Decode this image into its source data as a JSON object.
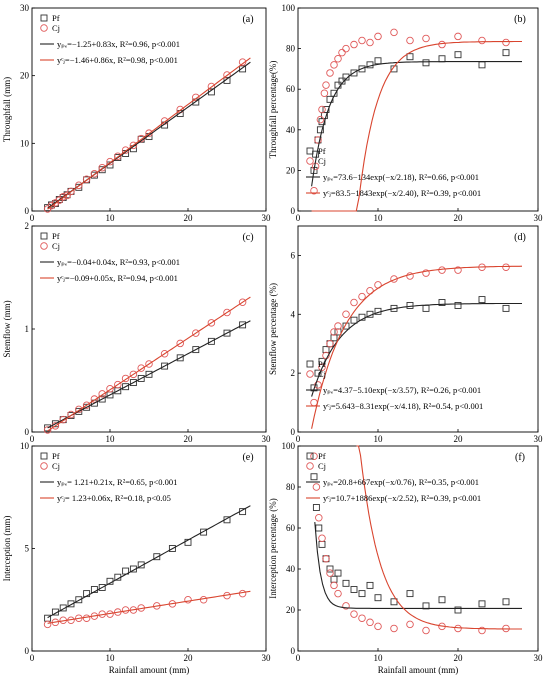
{
  "colors": {
    "pf": "#333333",
    "cj": "#e05a5a",
    "pf_line": "#222222",
    "cj_line": "#d9452f"
  },
  "chart_data": [
    {
      "type": "scatter",
      "panel_label": "(a)",
      "ylabel": "Throughfall (mm)",
      "xlabel": "",
      "xlim": [
        0,
        30
      ],
      "xticks": [
        0,
        10,
        20,
        30
      ],
      "ylim": [
        0,
        30
      ],
      "yticks": [
        0,
        10,
        20,
        30
      ],
      "legend": [
        "Pf",
        "Cj"
      ],
      "legend_position": "top-left",
      "fits": [
        {
          "series": "Pf",
          "equation": "yₚₑ=−1.25+0.83x, R²=0.96, p<0.001",
          "model": "linear",
          "a": -1.25,
          "b": 0.83,
          "x_range": [
            2,
            28
          ]
        },
        {
          "series": "Cj",
          "equation": "yᶜⱼ=−1.46+0.86x, R²=0.98, p<0.001",
          "model": "linear",
          "a": -1.46,
          "b": 0.86,
          "x_range": [
            2,
            28
          ]
        }
      ],
      "series": [
        {
          "name": "Pf",
          "x": [
            2.0,
            2.5,
            3.0,
            3.5,
            4.0,
            4.5,
            5.0,
            6.0,
            7.0,
            8.0,
            9.0,
            10.0,
            11.0,
            12.0,
            13.0,
            14.0,
            15.0,
            17.0,
            19.0,
            21.0,
            23.0,
            25.0,
            27.0
          ],
          "y": [
            0.5,
            0.9,
            1.1,
            1.7,
            2.0,
            2.4,
            2.9,
            3.5,
            4.6,
            5.3,
            6.1,
            6.8,
            7.9,
            8.5,
            9.2,
            10.6,
            11.0,
            12.7,
            14.4,
            16.1,
            17.6,
            19.3,
            21.0
          ]
        },
        {
          "name": "Cj",
          "x": [
            2.0,
            2.5,
            3.0,
            3.5,
            4.0,
            4.5,
            5.0,
            6.0,
            7.0,
            8.0,
            9.0,
            10.0,
            11.0,
            12.0,
            13.0,
            14.0,
            15.0,
            17.0,
            19.0,
            21.0,
            23.0,
            25.0,
            27.0
          ],
          "y": [
            0.3,
            0.8,
            1.2,
            1.6,
            2.1,
            2.3,
            2.9,
            3.8,
            4.7,
            5.5,
            6.4,
            7.3,
            8.1,
            9.0,
            9.7,
            10.7,
            11.5,
            13.3,
            15.0,
            16.8,
            18.4,
            20.1,
            22.0
          ]
        }
      ]
    },
    {
      "type": "scatter",
      "panel_label": "(b)",
      "ylabel": "Throughfall percentage(%)",
      "xlabel": "",
      "xlim": [
        0,
        30
      ],
      "xticks": [
        0,
        10,
        20,
        30
      ],
      "ylim": [
        0,
        100
      ],
      "yticks": [
        0,
        20,
        40,
        60,
        80,
        100
      ],
      "legend": [
        "Pf",
        "Cj"
      ],
      "legend_position": "bottom-left",
      "fits": [
        {
          "series": "Pf",
          "equation": "yₚₑ=73.6−134exp(−x/2.18), R²=0.66, p<0.001",
          "model": "exp",
          "a": 73.6,
          "b": 134,
          "c": 2.18,
          "x_range": [
            1.7,
            28
          ]
        },
        {
          "series": "Cj",
          "equation": "yᶜⱼ=83.5−1843exp(−x/2.40), R²=0.39, p<0.001",
          "model": "exp",
          "a": 83.5,
          "b": 1843,
          "c": 2.4,
          "x_range": [
            1.7,
            28
          ]
        }
      ],
      "series": [
        {
          "name": "Pf",
          "x": [
            2.0,
            2.2,
            2.5,
            2.8,
            3.0,
            3.3,
            3.5,
            4.0,
            4.5,
            5.0,
            5.5,
            6.0,
            7.0,
            8.0,
            9.0,
            10.0,
            12.0,
            14.0,
            16.0,
            18.0,
            20.0,
            23.0,
            26.0
          ],
          "y": [
            20,
            28,
            35,
            40,
            44,
            47,
            50,
            55,
            58,
            62,
            64,
            66,
            68,
            70,
            72,
            74,
            70,
            76,
            73,
            75,
            77,
            72,
            78
          ]
        },
        {
          "name": "Cj",
          "x": [
            2.0,
            2.2,
            2.5,
            2.8,
            3.0,
            3.3,
            3.5,
            4.0,
            4.5,
            5.0,
            5.5,
            6.0,
            7.0,
            8.0,
            9.0,
            10.0,
            12.0,
            14.0,
            16.0,
            18.0,
            20.0,
            23.0,
            26.0
          ],
          "y": [
            10,
            22,
            35,
            45,
            50,
            58,
            62,
            68,
            72,
            75,
            78,
            80,
            82,
            84,
            83,
            86,
            88,
            84,
            85,
            82,
            86,
            84,
            83
          ]
        }
      ]
    },
    {
      "type": "scatter",
      "panel_label": "(c)",
      "ylabel": "Stemflow (mm)",
      "xlabel": "",
      "xlim": [
        0,
        30
      ],
      "xticks": [
        0,
        10,
        20,
        30
      ],
      "ylim": [
        0,
        2
      ],
      "yticks": [
        0,
        1,
        2
      ],
      "legend": [
        "Pf",
        "Cj"
      ],
      "legend_position": "top-left",
      "fits": [
        {
          "series": "Pf",
          "equation": "yₚₑ=−0.04+0.04x, R²=0.93, p<0.001",
          "model": "linear",
          "a": -0.04,
          "b": 0.04,
          "x_range": [
            2,
            28
          ]
        },
        {
          "series": "Cj",
          "equation": "yᶜⱼ=−0.09+0.05x, R²=0.94, p<0.001",
          "model": "linear",
          "a": -0.09,
          "b": 0.05,
          "x_range": [
            2,
            28
          ]
        }
      ],
      "series": [
        {
          "name": "Pf",
          "x": [
            2.0,
            3.0,
            4.0,
            5.0,
            6.0,
            7.0,
            8.0,
            9.0,
            10.0,
            11.0,
            12.0,
            13.0,
            14.0,
            15.0,
            17.0,
            19.0,
            21.0,
            23.0,
            25.0,
            27.0
          ],
          "y": [
            0.04,
            0.08,
            0.12,
            0.16,
            0.2,
            0.24,
            0.28,
            0.32,
            0.36,
            0.4,
            0.44,
            0.48,
            0.52,
            0.56,
            0.64,
            0.72,
            0.8,
            0.88,
            0.96,
            1.04
          ]
        },
        {
          "name": "Cj",
          "x": [
            2.0,
            3.0,
            4.0,
            5.0,
            6.0,
            7.0,
            8.0,
            9.0,
            10.0,
            11.0,
            12.0,
            13.0,
            14.0,
            15.0,
            17.0,
            19.0,
            21.0,
            23.0,
            25.0,
            27.0
          ],
          "y": [
            0.02,
            0.06,
            0.12,
            0.17,
            0.22,
            0.26,
            0.32,
            0.37,
            0.42,
            0.46,
            0.52,
            0.56,
            0.62,
            0.66,
            0.76,
            0.86,
            0.96,
            1.06,
            1.16,
            1.26
          ]
        }
      ]
    },
    {
      "type": "scatter",
      "panel_label": "(d)",
      "ylabel": "Stemflow percentage (%)",
      "xlabel": "",
      "xlim": [
        0,
        30
      ],
      "xticks": [
        0,
        10,
        20,
        30
      ],
      "ylim": [
        0,
        7
      ],
      "yticks": [
        0,
        2,
        4,
        6
      ],
      "legend": [
        "Pf",
        "Cj"
      ],
      "legend_position": "bottom-left",
      "fits": [
        {
          "series": "Pf",
          "equation": "yₚₑ=4.37−5.10exp(−x/3.57), R²=0.26, p<0.001",
          "model": "exp",
          "a": 4.37,
          "b": 5.1,
          "c": 3.57,
          "x_range": [
            1.7,
            28
          ]
        },
        {
          "series": "Cj",
          "equation": "yᶜⱼ=5.643−8.31exp(−x/4.18), R²=0.54, p<0.001",
          "model": "exp",
          "a": 5.643,
          "b": 8.31,
          "c": 4.18,
          "x_range": [
            1.7,
            28
          ]
        }
      ],
      "series": [
        {
          "name": "Pf",
          "x": [
            2.0,
            2.5,
            3.0,
            3.5,
            4.0,
            4.5,
            5.0,
            6.0,
            7.0,
            8.0,
            9.0,
            10.0,
            12.0,
            14.0,
            16.0,
            18.0,
            20.0,
            23.0,
            26.0
          ],
          "y": [
            1.5,
            2.0,
            2.4,
            2.8,
            3.0,
            3.2,
            3.4,
            3.6,
            3.8,
            3.9,
            4.0,
            4.1,
            4.2,
            4.3,
            4.2,
            4.4,
            4.3,
            4.5,
            4.2
          ]
        },
        {
          "name": "Cj",
          "x": [
            2.0,
            2.5,
            3.0,
            3.5,
            4.0,
            4.5,
            5.0,
            6.0,
            7.0,
            8.0,
            9.0,
            10.0,
            12.0,
            14.0,
            16.0,
            18.0,
            20.0,
            23.0,
            26.0
          ],
          "y": [
            1.0,
            1.6,
            2.2,
            2.6,
            3.0,
            3.4,
            3.6,
            4.0,
            4.4,
            4.6,
            4.8,
            5.0,
            5.2,
            5.3,
            5.4,
            5.5,
            5.5,
            5.6,
            5.6
          ]
        }
      ]
    },
    {
      "type": "scatter",
      "panel_label": "(e)",
      "ylabel": "Interception (mm)",
      "xlabel": "Rainfall amount (mm)",
      "xlim": [
        0,
        30
      ],
      "xticks": [
        0,
        10,
        20,
        30
      ],
      "ylim": [
        0,
        10
      ],
      "yticks": [
        0,
        5,
        10
      ],
      "legend": [
        "Pf",
        "Cj"
      ],
      "legend_position": "top-left",
      "fits": [
        {
          "series": "Pf",
          "equation": "yₚₑ= 1.21+0.21x, R²=0.65, p<0.001",
          "model": "linear",
          "a": 1.21,
          "b": 0.21,
          "x_range": [
            2,
            28
          ]
        },
        {
          "series": "Cj",
          "equation": "yᶜⱼ= 1.23+0.06x, R²=0.18, p<0.05",
          "model": "linear",
          "a": 1.23,
          "b": 0.06,
          "x_range": [
            2,
            28
          ]
        }
      ],
      "series": [
        {
          "name": "Pf",
          "x": [
            2.0,
            3.0,
            4.0,
            5.0,
            6.0,
            7.0,
            8.0,
            9.0,
            10.0,
            11.0,
            12.0,
            13.0,
            14.0,
            16.0,
            18.0,
            20.0,
            22.0,
            25.0,
            27.0
          ],
          "y": [
            1.6,
            1.9,
            2.1,
            2.3,
            2.5,
            2.8,
            3.0,
            3.1,
            3.4,
            3.6,
            3.9,
            4.0,
            4.2,
            4.6,
            5.0,
            5.3,
            5.8,
            6.4,
            6.8
          ]
        },
        {
          "name": "Cj",
          "x": [
            2.0,
            3.0,
            4.0,
            5.0,
            6.0,
            7.0,
            8.0,
            9.0,
            10.0,
            11.0,
            12.0,
            13.0,
            14.0,
            16.0,
            18.0,
            20.0,
            22.0,
            25.0,
            27.0
          ],
          "y": [
            1.3,
            1.4,
            1.5,
            1.5,
            1.6,
            1.6,
            1.7,
            1.8,
            1.8,
            1.9,
            2.0,
            2.0,
            2.1,
            2.2,
            2.3,
            2.5,
            2.5,
            2.7,
            2.8
          ]
        }
      ]
    },
    {
      "type": "scatter",
      "panel_label": "(f)",
      "ylabel": "Interception percentage (%)",
      "xlabel": "Rainfall amount (mm)",
      "xlim": [
        0,
        30
      ],
      "xticks": [
        0,
        10,
        20,
        30
      ],
      "ylim": [
        0,
        100
      ],
      "yticks": [
        0,
        20,
        40,
        60,
        80,
        100
      ],
      "legend": [
        "Pf",
        "Cj"
      ],
      "legend_position": "top-left",
      "fits": [
        {
          "series": "Pf",
          "equation": "yₚₑ=20.8+667exp(−x/0.76), R²=0.35, p<0.001",
          "model": "expplus",
          "a": 20.8,
          "b": 667,
          "c": 0.76,
          "x_range": [
            2.1,
            28
          ]
        },
        {
          "series": "Cj",
          "equation": "yᶜⱼ=10.7+1886exp(−x/2.52), R²=0.39, p<0.001",
          "model": "expplus",
          "a": 10.7,
          "b": 1886,
          "c": 2.52,
          "x_range": [
            7.3,
            28
          ]
        }
      ],
      "series": [
        {
          "name": "Pf",
          "x": [
            2.0,
            2.3,
            2.6,
            3.0,
            3.5,
            4.0,
            4.5,
            5.0,
            6.0,
            7.0,
            8.0,
            9.0,
            10.0,
            12.0,
            14.0,
            16.0,
            18.0,
            20.0,
            23.0,
            26.0
          ],
          "y": [
            85,
            70,
            60,
            52,
            45,
            40,
            35,
            38,
            33,
            30,
            28,
            32,
            26,
            24,
            28,
            22,
            25,
            20,
            23,
            24
          ]
        },
        {
          "name": "Cj",
          "x": [
            2.0,
            2.3,
            2.6,
            3.0,
            3.5,
            4.0,
            4.5,
            5.0,
            6.0,
            7.0,
            8.0,
            9.0,
            10.0,
            12.0,
            14.0,
            16.0,
            18.0,
            20.0,
            23.0,
            26.0
          ],
          "y": [
            95,
            80,
            65,
            55,
            45,
            38,
            32,
            28,
            22,
            18,
            16,
            14,
            12,
            11,
            13,
            10,
            12,
            11,
            10,
            11
          ]
        }
      ]
    }
  ]
}
